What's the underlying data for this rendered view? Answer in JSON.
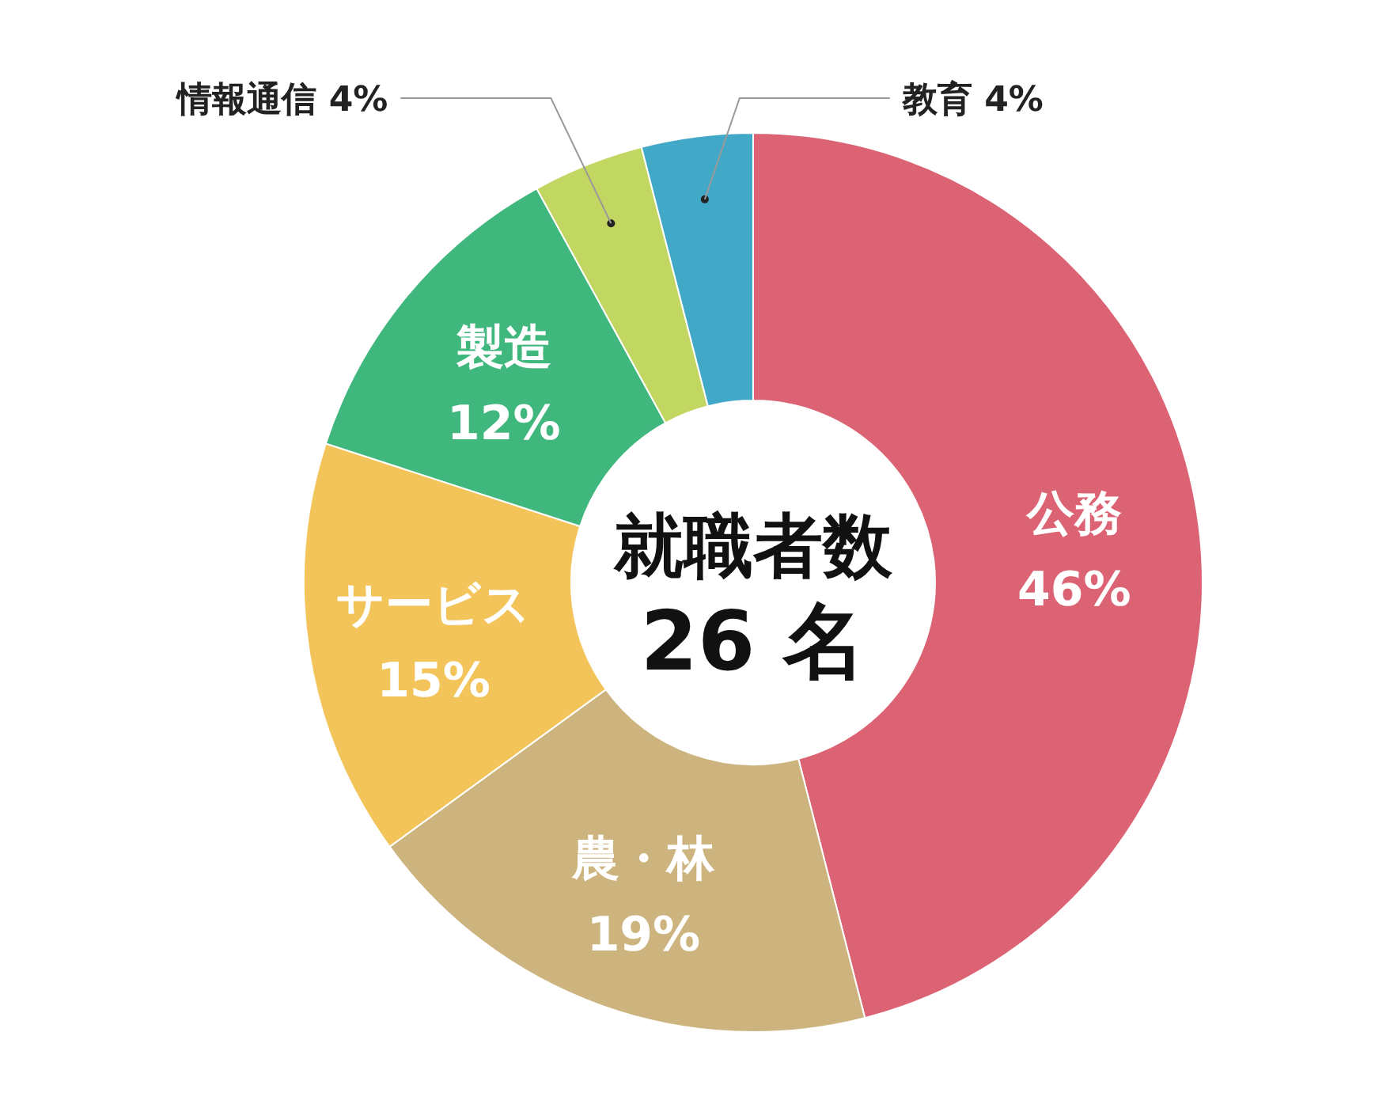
{
  "chart_data": {
    "type": "donut",
    "categories": [
      "公務",
      "農・林",
      "サービス",
      "製造",
      "情報通信",
      "教育"
    ],
    "values": [
      46,
      19,
      15,
      12,
      4,
      4
    ],
    "colors": [
      "#db6373",
      "#cdb47e",
      "#f2c45a",
      "#3fb77d",
      "#c2d762",
      "#42a8c7"
    ],
    "value_labels": [
      "46%",
      "19%",
      "15%",
      "12%",
      "4%",
      "4%"
    ],
    "annotations": [
      "就職者数",
      "26 名"
    ]
  }
}
